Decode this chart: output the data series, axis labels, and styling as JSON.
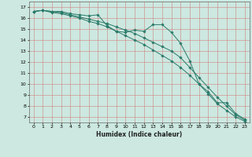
{
  "xlabel": "Humidex (Indice chaleur)",
  "ylabel": "",
  "background_color": "#cce8e0",
  "grid_color": "#d08080",
  "line_color": "#2a7a6a",
  "x_ticks": [
    0,
    1,
    2,
    3,
    4,
    5,
    6,
    7,
    8,
    9,
    10,
    11,
    12,
    13,
    14,
    15,
    16,
    17,
    18,
    19,
    20,
    21,
    22,
    23
  ],
  "y_ticks": [
    7,
    8,
    9,
    10,
    11,
    12,
    13,
    14,
    15,
    16,
    17
  ],
  "ylim": [
    6.5,
    17.5
  ],
  "xlim": [
    -0.5,
    23.5
  ],
  "series": [
    {
      "x": [
        0,
        1,
        2,
        3,
        4,
        5,
        6,
        7,
        8,
        9,
        10,
        11,
        12,
        13,
        14,
        15,
        16,
        17,
        18,
        19,
        20,
        21,
        22,
        23
      ],
      "y": [
        16.6,
        16.7,
        16.6,
        16.6,
        16.4,
        16.3,
        16.2,
        16.3,
        15.3,
        14.8,
        14.7,
        14.9,
        14.8,
        15.4,
        15.4,
        14.7,
        13.7,
        12.1,
        10.0,
        9.3,
        8.3,
        8.3,
        7.3,
        6.8
      ]
    },
    {
      "x": [
        0,
        1,
        2,
        3,
        4,
        5,
        6,
        7,
        8,
        9,
        10,
        11,
        12,
        13,
        14,
        15,
        16,
        17,
        18,
        19,
        20,
        21,
        22,
        23
      ],
      "y": [
        16.6,
        16.7,
        16.6,
        16.5,
        16.3,
        16.1,
        15.9,
        15.7,
        15.5,
        15.2,
        14.9,
        14.6,
        14.2,
        13.8,
        13.4,
        13.0,
        12.4,
        11.5,
        10.6,
        9.7,
        8.8,
        8.0,
        7.2,
        6.7
      ]
    },
    {
      "x": [
        0,
        1,
        2,
        3,
        4,
        5,
        6,
        7,
        8,
        9,
        10,
        11,
        12,
        13,
        14,
        15,
        16,
        17,
        18,
        19,
        20,
        21,
        22,
        23
      ],
      "y": [
        16.6,
        16.7,
        16.5,
        16.4,
        16.2,
        16.0,
        15.7,
        15.5,
        15.2,
        14.8,
        14.4,
        14.0,
        13.6,
        13.1,
        12.6,
        12.1,
        11.5,
        10.8,
        10.0,
        9.1,
        8.2,
        7.6,
        7.0,
        6.6
      ]
    }
  ]
}
